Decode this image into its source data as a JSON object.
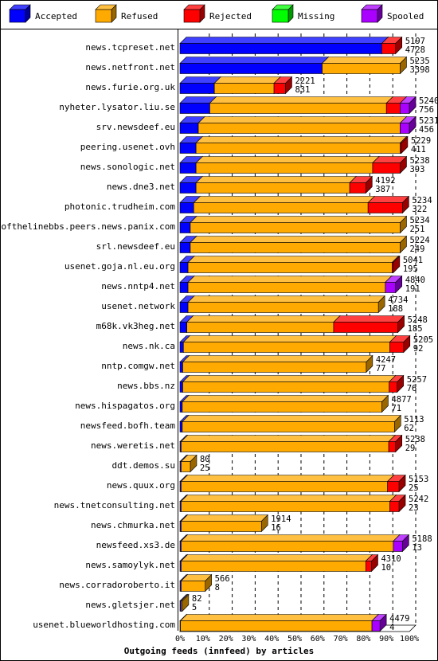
{
  "chart_data": {
    "type": "bar",
    "title": "Outgoing feeds (innfeed) by articles",
    "legend": {
      "placement": "top",
      "entries": [
        {
          "name": "Accepted",
          "color": "#0000ff"
        },
        {
          "name": "Refused",
          "color": "#ffaa00"
        },
        {
          "name": "Rejected",
          "color": "#ff0000"
        },
        {
          "name": "Missing",
          "color": "#00ff00"
        },
        {
          "name": "Spooled",
          "color": "#aa00ff"
        }
      ]
    },
    "xlim": [
      0,
      100
    ],
    "x_ticks": [
      "0%",
      "10%",
      "20%",
      "30%",
      "40%",
      "50%",
      "60%",
      "70%",
      "80%",
      "90%",
      "100%"
    ],
    "grid": true,
    "note": "bar segment values are percent of the 100% scale",
    "rows": [
      {
        "label": "news.tcpreset.net",
        "total": "5197",
        "accepted_count": "4728",
        "segments": [
          88.0,
          0,
          6.0,
          0,
          0
        ]
      },
      {
        "label": "news.netfront.net",
        "total": "5235",
        "accepted_count": "3398",
        "segments": [
          62.0,
          34.0,
          0,
          0,
          0
        ]
      },
      {
        "label": "news.furie.org.uk",
        "total": "2221",
        "accepted_count": "831",
        "segments": [
          15.0,
          26.0,
          5.0,
          0,
          0
        ]
      },
      {
        "label": "nyheter.lysator.liu.se",
        "total": "5240",
        "accepted_count": "756",
        "segments": [
          13.0,
          77.0,
          6.0,
          0,
          4.0
        ]
      },
      {
        "label": "srv.newsdeef.eu",
        "total": "5231",
        "accepted_count": "456",
        "segments": [
          8.0,
          88.0,
          0,
          0,
          4.0
        ]
      },
      {
        "label": "peering.usenet.ovh",
        "total": "5229",
        "accepted_count": "411",
        "segments": [
          7.0,
          89.0,
          0.5,
          0,
          0
        ]
      },
      {
        "label": "news.sonologic.net",
        "total": "5238",
        "accepted_count": "393",
        "segments": [
          7.0,
          77.0,
          12.0,
          0,
          0
        ]
      },
      {
        "label": "news.dne3.net",
        "total": "4192",
        "accepted_count": "387",
        "segments": [
          7.0,
          67.0,
          7.0,
          0,
          0
        ]
      },
      {
        "label": "photonic.trudheim.com",
        "total": "5234",
        "accepted_count": "322",
        "segments": [
          6.0,
          76.0,
          15.0,
          0,
          0
        ]
      },
      {
        "label": "endofthelinebbs.peers.news.panix.com",
        "total": "5234",
        "accepted_count": "251",
        "segments": [
          4.5,
          91.5,
          0,
          0,
          0
        ]
      },
      {
        "label": "srl.newsdeef.eu",
        "total": "5224",
        "accepted_count": "249",
        "segments": [
          4.5,
          91.5,
          0,
          0,
          0
        ]
      },
      {
        "label": "usenet.goja.nl.eu.org",
        "total": "5041",
        "accepted_count": "195",
        "segments": [
          3.5,
          89.0,
          0.5,
          0,
          0
        ]
      },
      {
        "label": "news.nntp4.net",
        "total": "4840",
        "accepted_count": "191",
        "segments": [
          3.5,
          86.0,
          0,
          0,
          4.5
        ]
      },
      {
        "label": "usenet.network",
        "total": "4734",
        "accepted_count": "188",
        "segments": [
          3.5,
          83.0,
          0,
          0,
          0
        ]
      },
      {
        "label": "m68k.vk3heg.net",
        "total": "5248",
        "accepted_count": "185",
        "segments": [
          3.0,
          64.0,
          28.0,
          0,
          0
        ]
      },
      {
        "label": "news.nk.ca",
        "total": "5205",
        "accepted_count": "92",
        "segments": [
          1.5,
          90.0,
          6.0,
          0,
          0
        ]
      },
      {
        "label": "nntp.comgw.net",
        "total": "4247",
        "accepted_count": "77",
        "segments": [
          1.2,
          80.0,
          0,
          0,
          0
        ]
      },
      {
        "label": "news.bbs.nz",
        "total": "5257",
        "accepted_count": "76",
        "segments": [
          1.2,
          90.0,
          3.5,
          0,
          0
        ]
      },
      {
        "label": "news.hispagatos.org",
        "total": "4877",
        "accepted_count": "71",
        "segments": [
          1.0,
          87.0,
          0,
          0,
          0
        ]
      },
      {
        "label": "newsfeed.bofh.team",
        "total": "5113",
        "accepted_count": "62",
        "segments": [
          1.0,
          92.5,
          0,
          0,
          0
        ]
      },
      {
        "label": "news.weretis.net",
        "total": "5238",
        "accepted_count": "29",
        "segments": [
          0.5,
          90.5,
          3.0,
          0,
          0
        ]
      },
      {
        "label": "ddt.demos.su",
        "total": "80",
        "accepted_count": "25",
        "segments": [
          0.5,
          4.0,
          0,
          0,
          0
        ]
      },
      {
        "label": "news.quux.org",
        "total": "5153",
        "accepted_count": "25",
        "segments": [
          0.5,
          90.0,
          5.0,
          0,
          0
        ]
      },
      {
        "label": "news.tnetconsulting.net",
        "total": "5242",
        "accepted_count": "23",
        "segments": [
          0.5,
          91.0,
          4.0,
          0,
          0
        ]
      },
      {
        "label": "news.chmurka.net",
        "total": "1914",
        "accepted_count": "16",
        "segments": [
          0.5,
          35.0,
          0,
          0,
          0
        ]
      },
      {
        "label": "newsfeed.xs3.de",
        "total": "5188",
        "accepted_count": "13",
        "segments": [
          0.5,
          92.5,
          0,
          0,
          4.0
        ]
      },
      {
        "label": "news.samoylyk.net",
        "total": "4310",
        "accepted_count": "10",
        "segments": [
          0.5,
          80.5,
          2.5,
          0,
          0
        ]
      },
      {
        "label": "news.corradoroberto.it",
        "total": "566",
        "accepted_count": "8",
        "segments": [
          0.5,
          10.5,
          0,
          0,
          0
        ]
      },
      {
        "label": "news.gletsjer.net",
        "total": "82",
        "accepted_count": "5",
        "segments": [
          0.5,
          0.5,
          0,
          0,
          0
        ]
      },
      {
        "label": "usenet.blueworldhosting.com",
        "total": "4479",
        "accepted_count": "4",
        "segments": [
          0.2,
          83.5,
          0,
          0,
          3.5
        ]
      }
    ]
  }
}
